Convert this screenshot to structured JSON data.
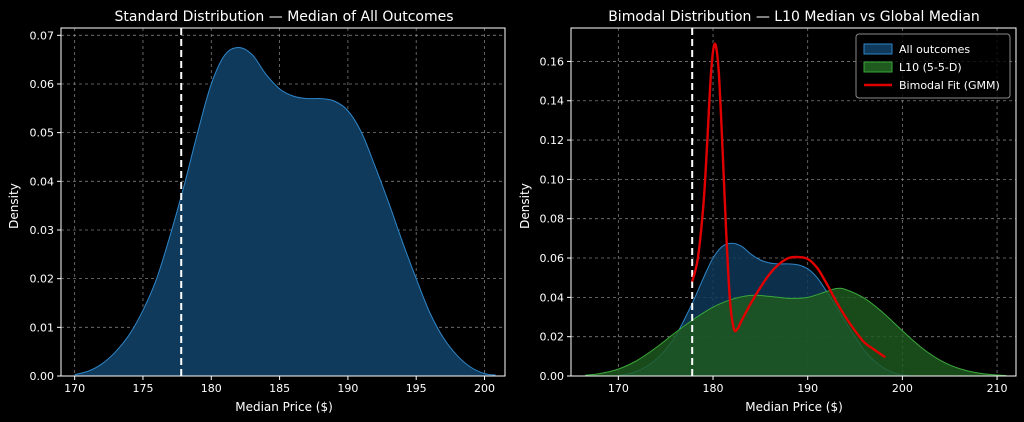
{
  "chart_data": [
    {
      "type": "area",
      "title": "Standard Distribution — Median of All Outcomes",
      "xlabel": "Median Price ($)",
      "ylabel": "Density",
      "xlim": [
        169,
        201.5
      ],
      "ylim": [
        0,
        0.0715
      ],
      "xticks": [
        170,
        175,
        180,
        185,
        190,
        195,
        200
      ],
      "yticks": [
        0.0,
        0.01,
        0.02,
        0.03,
        0.04,
        0.05,
        0.06,
        0.07
      ],
      "ytick_labels": [
        "0.00",
        "0.01",
        "0.02",
        "0.03",
        "0.04",
        "0.05",
        "0.06",
        "0.07"
      ],
      "grid": true,
      "reference_line": {
        "x": 177.8,
        "style": "dashed",
        "color": "#ffffff"
      },
      "series": [
        {
          "name": "All outcomes",
          "fill": "#0f3a5c",
          "stroke": "#2e86c9",
          "x": [
            170,
            171,
            172,
            173,
            174,
            175,
            176,
            177,
            178,
            179,
            180,
            181,
            182,
            183,
            184,
            185,
            186,
            187,
            188,
            189,
            190,
            191,
            192,
            193,
            194,
            195,
            196,
            197,
            198,
            199,
            200,
            200.8
          ],
          "y": [
            0.0003,
            0.001,
            0.0025,
            0.005,
            0.0085,
            0.0135,
            0.02,
            0.029,
            0.039,
            0.05,
            0.06,
            0.066,
            0.0675,
            0.066,
            0.062,
            0.059,
            0.0575,
            0.057,
            0.057,
            0.0565,
            0.0545,
            0.05,
            0.043,
            0.0355,
            0.0275,
            0.02,
            0.013,
            0.0078,
            0.0042,
            0.0018,
            0.0005,
            0.0002
          ]
        }
      ]
    },
    {
      "type": "area",
      "title": "Bimodal Distribution — L10 Median vs Global Median",
      "xlabel": "Median Price ($)",
      "ylabel": "Density",
      "xlim": [
        165,
        212
      ],
      "ylim": [
        0,
        0.177
      ],
      "xticks": [
        170,
        180,
        190,
        200,
        210
      ],
      "yticks": [
        0.0,
        0.02,
        0.04,
        0.06,
        0.08,
        0.1,
        0.12,
        0.14,
        0.16
      ],
      "ytick_labels": [
        "0.00",
        "0.02",
        "0.04",
        "0.06",
        "0.08",
        "0.10",
        "0.12",
        "0.14",
        "0.16"
      ],
      "grid": true,
      "legend": "top-right",
      "reference_line": {
        "x": 177.8,
        "style": "dashed",
        "color": "#ffffff"
      },
      "series": [
        {
          "name": "All outcomes",
          "kind": "area",
          "fill": "#0f3a5c",
          "stroke": "#2e86c9",
          "x": [
            170,
            171,
            172,
            173,
            174,
            175,
            176,
            177,
            178,
            179,
            180,
            181,
            182,
            183,
            184,
            185,
            186,
            187,
            188,
            189,
            190,
            191,
            192,
            193,
            194,
            195,
            196,
            197,
            198,
            199,
            200,
            200.8
          ],
          "y": [
            0.0003,
            0.001,
            0.0025,
            0.005,
            0.0085,
            0.0135,
            0.02,
            0.029,
            0.039,
            0.05,
            0.06,
            0.066,
            0.0675,
            0.066,
            0.062,
            0.059,
            0.0575,
            0.057,
            0.057,
            0.0565,
            0.0545,
            0.05,
            0.043,
            0.0355,
            0.0275,
            0.02,
            0.013,
            0.0078,
            0.0042,
            0.0018,
            0.0005,
            0.0002
          ]
        },
        {
          "name": "L10 (5-5-D)",
          "kind": "area",
          "fill": "#1f5a1f",
          "stroke": "#3aa83a",
          "x": [
            166.5,
            168,
            170,
            172,
            174,
            176,
            178,
            180,
            182,
            184,
            186,
            188,
            190,
            192,
            193,
            194,
            196,
            198,
            200,
            202,
            204,
            206,
            208,
            210,
            211
          ],
          "y": [
            0.0004,
            0.0012,
            0.0035,
            0.008,
            0.0145,
            0.022,
            0.029,
            0.035,
            0.039,
            0.041,
            0.0405,
            0.0395,
            0.04,
            0.043,
            0.0445,
            0.044,
            0.0395,
            0.032,
            0.023,
            0.0145,
            0.008,
            0.0038,
            0.0015,
            0.0005,
            0.0002
          ]
        },
        {
          "name": "Bimodal Fit (GMM)",
          "kind": "line",
          "stroke": "#e00000",
          "x": [
            177.8,
            178.4,
            179,
            179.4,
            179.8,
            180.2,
            180.6,
            181,
            181.4,
            181.8,
            182.2,
            182.6,
            183,
            184,
            185,
            186,
            187,
            188,
            189,
            190,
            191,
            192,
            193,
            194,
            195,
            196,
            197,
            198.2
          ],
          "y": [
            0.048,
            0.06,
            0.088,
            0.12,
            0.155,
            0.169,
            0.155,
            0.116,
            0.072,
            0.038,
            0.024,
            0.024,
            0.028,
            0.037,
            0.045,
            0.052,
            0.057,
            0.06,
            0.0605,
            0.0595,
            0.055,
            0.047,
            0.038,
            0.03,
            0.023,
            0.017,
            0.0135,
            0.0095
          ]
        }
      ]
    }
  ]
}
